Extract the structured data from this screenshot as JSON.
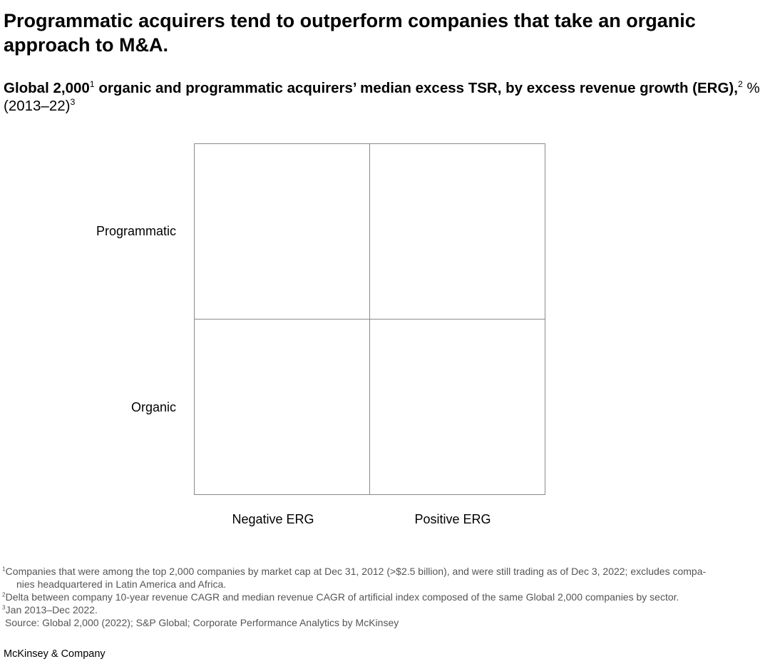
{
  "title": "Programmatic acquirers tend to outperform companies that take an organic approach to M&A.",
  "subtitle": {
    "bold_part1": "Global 2,000",
    "sup1": "1",
    "bold_part2": " organic and programmatic acquirers’ median excess TSR, by excess revenue growth (ERG),",
    "sup2": "2",
    "unit": " % (2013–22)",
    "sup3": "3"
  },
  "matrix": {
    "rows": [
      "Programmatic",
      "Organic"
    ],
    "columns": [
      "Negative ERG",
      "Positive ERG"
    ],
    "border_color": "#8a8a8a"
  },
  "footnotes": [
    {
      "marker": "1",
      "text": "Companies that were among the top 2,000 companies by market cap at Dec 31, 2012 (>$2.5 billion), and were still trading as of Dec 3, 2022; excludes compa-",
      "continuation": "nies headquartered in Latin America and Africa."
    },
    {
      "marker": "2",
      "text": "Delta between company 10-year revenue CAGR and median revenue CAGR of artificial index composed of the same Global 2,000 companies by sector."
    },
    {
      "marker": "3",
      "text": "Jan 2013–Dec 2022."
    }
  ],
  "source": "Source: Global 2,000 (2022); S&P Global; Corporate Performance Analytics by McKinsey",
  "brand": "McKinsey & Company"
}
